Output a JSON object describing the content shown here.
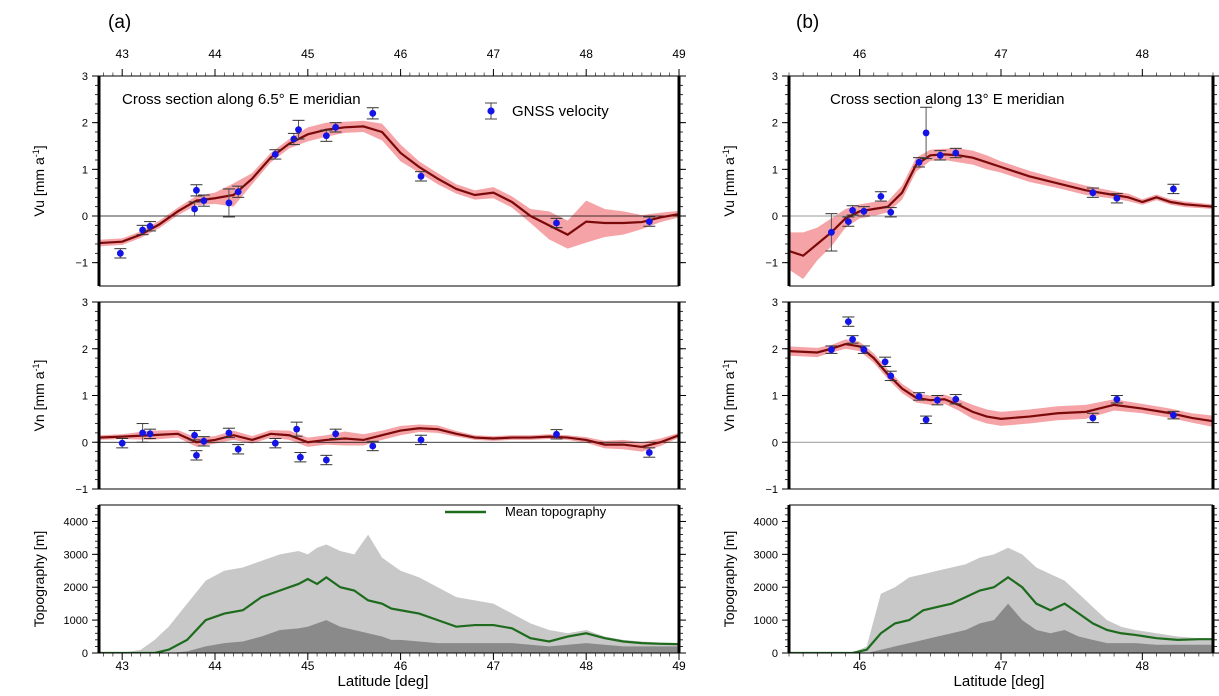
{
  "figure": {
    "x_label": "Latitude [deg]",
    "labels": {
      "vu": [
        "Vu [mm a",
        "-1",
        "]"
      ],
      "vn": [
        "Vn [mm a",
        "-1",
        "]"
      ],
      "topo": "Topography [m]"
    },
    "legend_gnss": "GNSS velocity",
    "legend_topo": "Mean topography",
    "colors": {
      "model_line": "#7a0a0a",
      "model_band": "#f5a3a6",
      "gnss_point": "#1414e6",
      "topo_mean": "#1e6b1e",
      "topo_max_fill": "#c8c8c8",
      "topo_mean_fill": "#8a8a8a"
    }
  },
  "chart_data": [
    {
      "type": "line",
      "panel": "(a)",
      "title": "Cross section along 6.5° E meridian",
      "xlim": [
        42.75,
        49.0
      ],
      "xticks": [
        "43",
        "44",
        "45",
        "46",
        "47",
        "48",
        "49"
      ],
      "xtick_values": [
        43,
        44,
        45,
        46,
        47,
        48,
        49
      ],
      "vu": {
        "ylim": [
          -1.5,
          3
        ],
        "yticks": [
          -1,
          0,
          1,
          2,
          3
        ],
        "model": {
          "lat": [
            42.75,
            43.0,
            43.2,
            43.4,
            43.6,
            43.8,
            44.0,
            44.2,
            44.4,
            44.6,
            44.8,
            45.0,
            45.2,
            45.4,
            45.6,
            45.8,
            46.0,
            46.2,
            46.4,
            46.6,
            46.8,
            47.0,
            47.2,
            47.4,
            47.6,
            47.8,
            48.0,
            48.2,
            48.4,
            48.6,
            48.8,
            49.0
          ],
          "values": [
            -0.58,
            -0.55,
            -0.4,
            -0.18,
            0.1,
            0.33,
            0.38,
            0.45,
            0.8,
            1.25,
            1.55,
            1.75,
            1.85,
            1.9,
            1.92,
            1.8,
            1.35,
            1.05,
            0.8,
            0.58,
            0.45,
            0.5,
            0.3,
            0.0,
            -0.2,
            -0.4,
            -0.12,
            -0.15,
            -0.15,
            -0.13,
            -0.03,
            0.04
          ],
          "band_half_width": [
            0.07,
            0.07,
            0.07,
            0.08,
            0.08,
            0.1,
            0.12,
            0.25,
            0.12,
            0.1,
            0.1,
            0.15,
            0.15,
            0.12,
            0.12,
            0.18,
            0.18,
            0.12,
            0.12,
            0.1,
            0.1,
            0.12,
            0.12,
            0.15,
            0.3,
            0.3,
            0.45,
            0.3,
            0.25,
            0.15,
            0.1,
            0.07
          ]
        },
        "gnss": {
          "lat": [
            42.98,
            43.22,
            43.3,
            43.78,
            43.8,
            43.88,
            44.15,
            44.25,
            44.65,
            44.85,
            44.9,
            45.2,
            45.3,
            45.7,
            46.22,
            47.68,
            48.68
          ],
          "values": [
            -0.8,
            -0.3,
            -0.22,
            0.15,
            0.55,
            0.33,
            0.28,
            0.52,
            1.32,
            1.65,
            1.85,
            1.72,
            1.9,
            2.2,
            0.85,
            -0.15,
            -0.12
          ],
          "err": [
            0.1,
            0.1,
            0.1,
            0.15,
            0.12,
            0.12,
            0.3,
            0.12,
            0.1,
            0.12,
            0.2,
            0.12,
            0.1,
            0.12,
            0.1,
            0.1,
            0.1
          ]
        }
      },
      "vn": {
        "ylim": [
          -1,
          3
        ],
        "yticks": [
          -1,
          0,
          1,
          2,
          3
        ],
        "model": {
          "lat": [
            42.75,
            43.0,
            43.3,
            43.6,
            43.8,
            44.0,
            44.2,
            44.4,
            44.6,
            44.8,
            45.0,
            45.2,
            45.4,
            45.6,
            45.8,
            46.0,
            46.2,
            46.4,
            46.6,
            46.8,
            47.0,
            47.2,
            47.4,
            47.6,
            47.8,
            48.0,
            48.2,
            48.4,
            48.6,
            48.8,
            49.0
          ],
          "values": [
            0.1,
            0.12,
            0.15,
            0.18,
            0.0,
            0.05,
            0.15,
            0.05,
            0.18,
            0.15,
            0.0,
            0.05,
            0.08,
            0.05,
            0.15,
            0.25,
            0.3,
            0.28,
            0.18,
            0.1,
            0.08,
            0.1,
            0.1,
            0.12,
            0.1,
            0.05,
            -0.05,
            -0.05,
            -0.1,
            0.0,
            0.15
          ],
          "band_half_width": [
            0.05,
            0.05,
            0.1,
            0.08,
            0.1,
            0.08,
            0.1,
            0.08,
            0.08,
            0.1,
            0.1,
            0.1,
            0.15,
            0.12,
            0.1,
            0.1,
            0.08,
            0.08,
            0.06,
            0.05,
            0.05,
            0.05,
            0.05,
            0.05,
            0.05,
            0.06,
            0.08,
            0.1,
            0.1,
            0.08,
            0.05
          ]
        },
        "gnss": {
          "lat": [
            43.0,
            43.22,
            43.3,
            43.78,
            43.8,
            43.88,
            44.15,
            44.25,
            44.65,
            44.88,
            44.92,
            45.2,
            45.3,
            45.7,
            46.22,
            47.68,
            48.68
          ],
          "values": [
            -0.02,
            0.2,
            0.18,
            0.15,
            -0.28,
            0.02,
            0.2,
            -0.15,
            -0.02,
            0.28,
            -0.32,
            -0.38,
            0.18,
            -0.08,
            0.05,
            0.17,
            -0.22
          ],
          "err": [
            0.1,
            0.2,
            0.1,
            0.1,
            0.1,
            0.1,
            0.1,
            0.1,
            0.1,
            0.15,
            0.1,
            0.1,
            0.1,
            0.1,
            0.1,
            0.1,
            0.1
          ]
        }
      },
      "topography": {
        "ylim": [
          0,
          4500
        ],
        "yticks": [
          0,
          1000,
          2000,
          3000,
          4000
        ],
        "lat": [
          42.75,
          43.0,
          43.2,
          43.35,
          43.5,
          43.7,
          43.9,
          44.1,
          44.3,
          44.5,
          44.7,
          44.9,
          45.0,
          45.1,
          45.2,
          45.35,
          45.5,
          45.65,
          45.8,
          45.9,
          46.0,
          46.2,
          46.4,
          46.6,
          46.8,
          47.0,
          47.2,
          47.4,
          47.6,
          47.8,
          48.0,
          48.2,
          48.4,
          48.6,
          48.8,
          49.0
        ],
        "mean": [
          0,
          0,
          0,
          0,
          100,
          400,
          1000,
          1200,
          1300,
          1700,
          1900,
          2100,
          2250,
          2100,
          2300,
          2000,
          1900,
          1600,
          1500,
          1350,
          1300,
          1200,
          1000,
          800,
          850,
          850,
          750,
          450,
          350,
          500,
          600,
          450,
          350,
          300,
          280,
          270
        ],
        "max": [
          0,
          0,
          100,
          400,
          800,
          1500,
          2200,
          2500,
          2600,
          2800,
          3000,
          3100,
          3000,
          3200,
          3300,
          3100,
          3000,
          3600,
          2900,
          2700,
          2500,
          2300,
          2000,
          1700,
          1600,
          1500,
          1200,
          900,
          700,
          600,
          700,
          500,
          400,
          350,
          320,
          300
        ],
        "min": [
          0,
          0,
          0,
          0,
          0,
          50,
          200,
          300,
          350,
          500,
          700,
          750,
          800,
          900,
          1000,
          800,
          700,
          600,
          500,
          400,
          400,
          350,
          300,
          300,
          300,
          300,
          300,
          250,
          200,
          250,
          300,
          250,
          200,
          200,
          200,
          200
        ]
      }
    },
    {
      "type": "line",
      "panel": "(b)",
      "title": "Cross section along 13° E meridian",
      "xlim": [
        45.5,
        48.5
      ],
      "xticks": [
        "46",
        "47",
        "48"
      ],
      "xtick_values": [
        46,
        47,
        48
      ],
      "vu": {
        "ylim": [
          -1.5,
          3
        ],
        "yticks": [
          -1,
          0,
          1,
          2,
          3
        ],
        "model": {
          "lat": [
            45.5,
            45.6,
            45.7,
            45.8,
            45.9,
            46.0,
            46.1,
            46.2,
            46.3,
            46.4,
            46.5,
            46.6,
            46.7,
            46.8,
            46.9,
            47.0,
            47.2,
            47.4,
            47.6,
            47.8,
            47.9,
            48.0,
            48.1,
            48.2,
            48.3,
            48.5
          ],
          "values": [
            -0.75,
            -0.85,
            -0.6,
            -0.35,
            -0.05,
            0.1,
            0.15,
            0.2,
            0.5,
            1.1,
            1.3,
            1.32,
            1.3,
            1.25,
            1.15,
            1.05,
            0.85,
            0.7,
            0.55,
            0.45,
            0.4,
            0.3,
            0.4,
            0.3,
            0.25,
            0.2
          ],
          "band_half_width": [
            0.4,
            0.5,
            0.35,
            0.3,
            0.2,
            0.15,
            0.15,
            0.12,
            0.15,
            0.15,
            0.12,
            0.12,
            0.15,
            0.15,
            0.15,
            0.12,
            0.12,
            0.1,
            0.1,
            0.08,
            0.08,
            0.06,
            0.06,
            0.06,
            0.06,
            0.05
          ]
        },
        "gnss": {
          "lat": [
            45.8,
            45.92,
            45.95,
            46.03,
            46.15,
            46.22,
            46.42,
            46.47,
            46.57,
            46.68,
            47.65,
            47.82,
            48.22
          ],
          "values": [
            -0.35,
            -0.12,
            0.12,
            0.1,
            0.42,
            0.08,
            1.15,
            1.78,
            1.3,
            1.35,
            0.5,
            0.38,
            0.58
          ],
          "err": [
            0.4,
            0.1,
            0.1,
            0.1,
            0.1,
            0.1,
            0.1,
            0.55,
            0.1,
            0.1,
            0.1,
            0.1,
            0.1
          ]
        }
      },
      "vn": {
        "ylim": [
          -1,
          3
        ],
        "yticks": [
          -1,
          0,
          1,
          2,
          3
        ],
        "model": {
          "lat": [
            45.5,
            45.7,
            45.8,
            45.9,
            46.0,
            46.1,
            46.2,
            46.3,
            46.4,
            46.5,
            46.6,
            46.7,
            46.8,
            46.9,
            47.0,
            47.2,
            47.4,
            47.6,
            47.8,
            48.0,
            48.2,
            48.35,
            48.5
          ],
          "values": [
            1.95,
            1.92,
            2.0,
            2.1,
            2.05,
            1.8,
            1.45,
            1.15,
            0.95,
            0.9,
            0.92,
            0.8,
            0.65,
            0.55,
            0.5,
            0.55,
            0.62,
            0.65,
            0.8,
            0.72,
            0.62,
            0.52,
            0.45
          ],
          "band_half_width": [
            0.1,
            0.1,
            0.08,
            0.1,
            0.1,
            0.1,
            0.1,
            0.1,
            0.1,
            0.1,
            0.1,
            0.12,
            0.15,
            0.15,
            0.15,
            0.15,
            0.15,
            0.15,
            0.12,
            0.1,
            0.1,
            0.1,
            0.12
          ]
        },
        "gnss": {
          "lat": [
            45.8,
            45.92,
            45.95,
            46.03,
            46.18,
            46.22,
            46.42,
            46.47,
            46.55,
            46.68,
            47.65,
            47.82,
            48.22
          ],
          "values": [
            1.98,
            2.58,
            2.2,
            1.98,
            1.72,
            1.42,
            0.98,
            0.48,
            0.9,
            0.92,
            0.52,
            0.92,
            0.58
          ],
          "err": [
            0.08,
            0.1,
            0.08,
            0.08,
            0.1,
            0.1,
            0.08,
            0.08,
            0.1,
            0.1,
            0.1,
            0.08,
            0.08
          ]
        }
      },
      "topography": {
        "ylim": [
          0,
          4500
        ],
        "yticks": [
          0,
          1000,
          2000,
          3000,
          4000
        ],
        "lat": [
          45.5,
          45.8,
          45.95,
          46.05,
          46.15,
          46.25,
          46.35,
          46.45,
          46.55,
          46.65,
          46.75,
          46.85,
          46.95,
          47.05,
          47.15,
          47.25,
          47.35,
          47.45,
          47.55,
          47.65,
          47.75,
          47.85,
          47.95,
          48.1,
          48.25,
          48.4,
          48.5
        ],
        "mean": [
          0,
          0,
          0,
          100,
          600,
          900,
          1000,
          1300,
          1400,
          1500,
          1700,
          1900,
          2000,
          2300,
          2000,
          1500,
          1300,
          1500,
          1200,
          900,
          700,
          600,
          550,
          450,
          400,
          420,
          420
        ],
        "max": [
          0,
          0,
          0,
          200,
          1800,
          2000,
          2300,
          2400,
          2500,
          2600,
          2700,
          2900,
          3000,
          3200,
          3000,
          2600,
          2400,
          2200,
          1800,
          1400,
          1000,
          800,
          700,
          600,
          500,
          450,
          420
        ],
        "min": [
          0,
          0,
          0,
          0,
          100,
          200,
          300,
          400,
          500,
          600,
          700,
          900,
          1000,
          1500,
          1000,
          700,
          600,
          700,
          500,
          400,
          300,
          300,
          300,
          250,
          250,
          250,
          250
        ]
      }
    }
  ]
}
